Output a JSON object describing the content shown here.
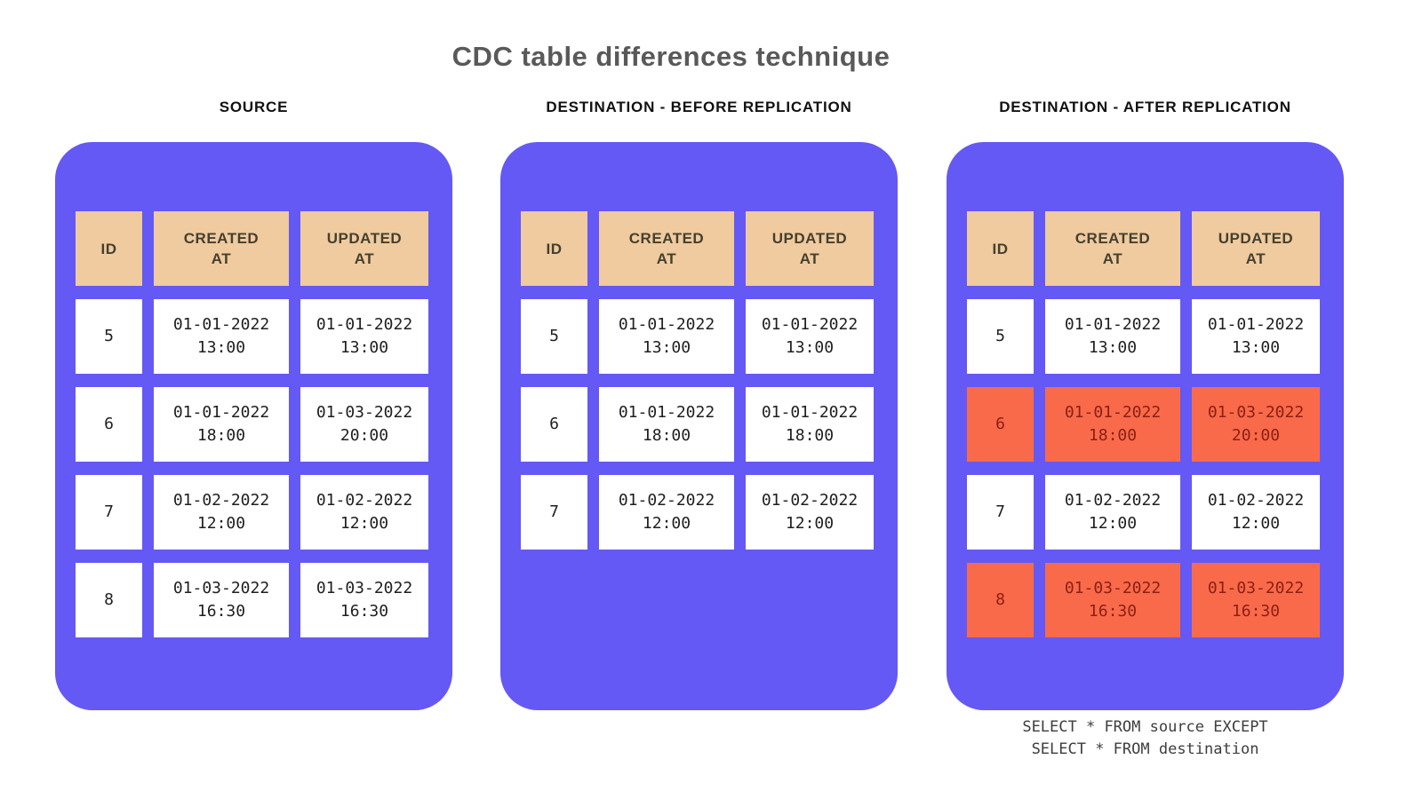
{
  "title": "CDC table differences technique",
  "columns": [
    "ID",
    "CREATED AT",
    "UPDATED AT"
  ],
  "panels": [
    {
      "title": "SOURCE",
      "rows": [
        {
          "id": "5",
          "created_at": "01-01-2022\n13:00",
          "updated_at": "01-01-2022\n13:00",
          "highlighted": false
        },
        {
          "id": "6",
          "created_at": "01-01-2022\n18:00",
          "updated_at": "01-03-2022\n20:00",
          "highlighted": false
        },
        {
          "id": "7",
          "created_at": "01-02-2022\n12:00",
          "updated_at": "01-02-2022\n12:00",
          "highlighted": false
        },
        {
          "id": "8",
          "created_at": "01-03-2022\n16:30",
          "updated_at": "01-03-2022\n16:30",
          "highlighted": false
        }
      ]
    },
    {
      "title": "DESTINATION - BEFORE REPLICATION",
      "rows": [
        {
          "id": "5",
          "created_at": "01-01-2022\n13:00",
          "updated_at": "01-01-2022\n13:00",
          "highlighted": false
        },
        {
          "id": "6",
          "created_at": "01-01-2022\n18:00",
          "updated_at": "01-01-2022\n18:00",
          "highlighted": false
        },
        {
          "id": "7",
          "created_at": "01-02-2022\n12:00",
          "updated_at": "01-02-2022\n12:00",
          "highlighted": false
        }
      ]
    },
    {
      "title": "DESTINATION - AFTER REPLICATION",
      "rows": [
        {
          "id": "5",
          "created_at": "01-01-2022\n13:00",
          "updated_at": "01-01-2022\n13:00",
          "highlighted": false
        },
        {
          "id": "6",
          "created_at": "01-01-2022\n18:00",
          "updated_at": "01-03-2022\n20:00",
          "highlighted": true
        },
        {
          "id": "7",
          "created_at": "01-02-2022\n12:00",
          "updated_at": "01-02-2022\n12:00",
          "highlighted": false
        },
        {
          "id": "8",
          "created_at": "01-03-2022\n16:30",
          "updated_at": "01-03-2022\n16:30",
          "highlighted": true
        }
      ]
    }
  ],
  "sql_note": {
    "line1": "SELECT * FROM source EXCEPT",
    "line2": "SELECT * FROM destination"
  },
  "colors": {
    "panel_background": "#6459F4",
    "header_cell_background": "#EFCB9F",
    "header_cell_text": "#45402F",
    "data_cell_background": "#FFFFFF",
    "data_cell_text": "#1F1F1F",
    "highlight_cell_background": "#F96A4B",
    "highlight_cell_text": "#8A2014",
    "title_text": "#595959",
    "caption_text": "#111111",
    "sql_note_text": "#3D3D3D",
    "page_background": "#FFFFFF"
  }
}
